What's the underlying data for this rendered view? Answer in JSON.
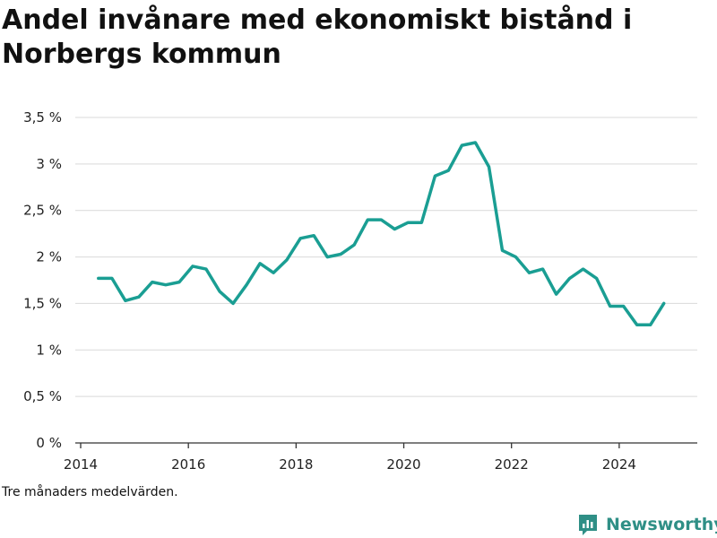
{
  "title": "Andel invånare med ekonomiskt bistånd i Norbergs kommun",
  "note": "Tre månaders medelvärden.",
  "brand": "Newsworthy",
  "colors": {
    "line": "#1a9e93",
    "grid": "#d9d9d9",
    "axis": "#333333",
    "brand": "#2f8f86"
  },
  "chart_data": {
    "type": "line",
    "title": "Andel invånare med ekonomiskt bistånd i Norbergs kommun",
    "xlabel": "",
    "ylabel": "",
    "xlim": [
      2013.9,
      2025.45
    ],
    "ylim": [
      0,
      3.5
    ],
    "x_ticks": [
      2014,
      2016,
      2018,
      2020,
      2022,
      2024
    ],
    "x_tick_labels": [
      "2014",
      "2016",
      "2018",
      "2020",
      "2022",
      "2024"
    ],
    "y_ticks": [
      0,
      0.5,
      1,
      1.5,
      2,
      2.5,
      3,
      3.5
    ],
    "y_tick_labels": [
      "0 %",
      "0,5 %",
      "1 %",
      "1,5 %",
      "2 %",
      "2,5 %",
      "3 %",
      "3,5 %"
    ],
    "grid": true,
    "series": [
      {
        "x": [
          2014.33,
          2014.58,
          2014.83,
          2015.08,
          2015.33,
          2015.58,
          2015.83,
          2016.08,
          2016.33,
          2016.58,
          2016.83,
          2017.08,
          2017.33,
          2017.58,
          2017.83,
          2018.08,
          2018.33,
          2018.58,
          2018.83,
          2019.08,
          2019.33,
          2019.58,
          2019.83,
          2020.08,
          2020.33,
          2020.58,
          2020.83,
          2021.08,
          2021.33,
          2021.58,
          2021.83,
          2022.08,
          2022.33,
          2022.58,
          2022.83,
          2023.08,
          2023.33,
          2023.58,
          2023.83,
          2024.08,
          2024.33,
          2024.58,
          2024.83
        ],
        "y": [
          1.77,
          1.77,
          1.53,
          1.57,
          1.73,
          1.7,
          1.73,
          1.9,
          1.87,
          1.63,
          1.5,
          1.7,
          1.93,
          1.83,
          1.97,
          2.2,
          2.23,
          2.0,
          2.03,
          2.13,
          2.4,
          2.4,
          2.3,
          2.37,
          2.37,
          2.87,
          2.93,
          3.2,
          3.23,
          2.97,
          2.07,
          2.0,
          1.83,
          1.87,
          1.6,
          1.77,
          1.87,
          1.77,
          1.47,
          1.47,
          1.27,
          1.27,
          1.5
        ]
      }
    ]
  }
}
